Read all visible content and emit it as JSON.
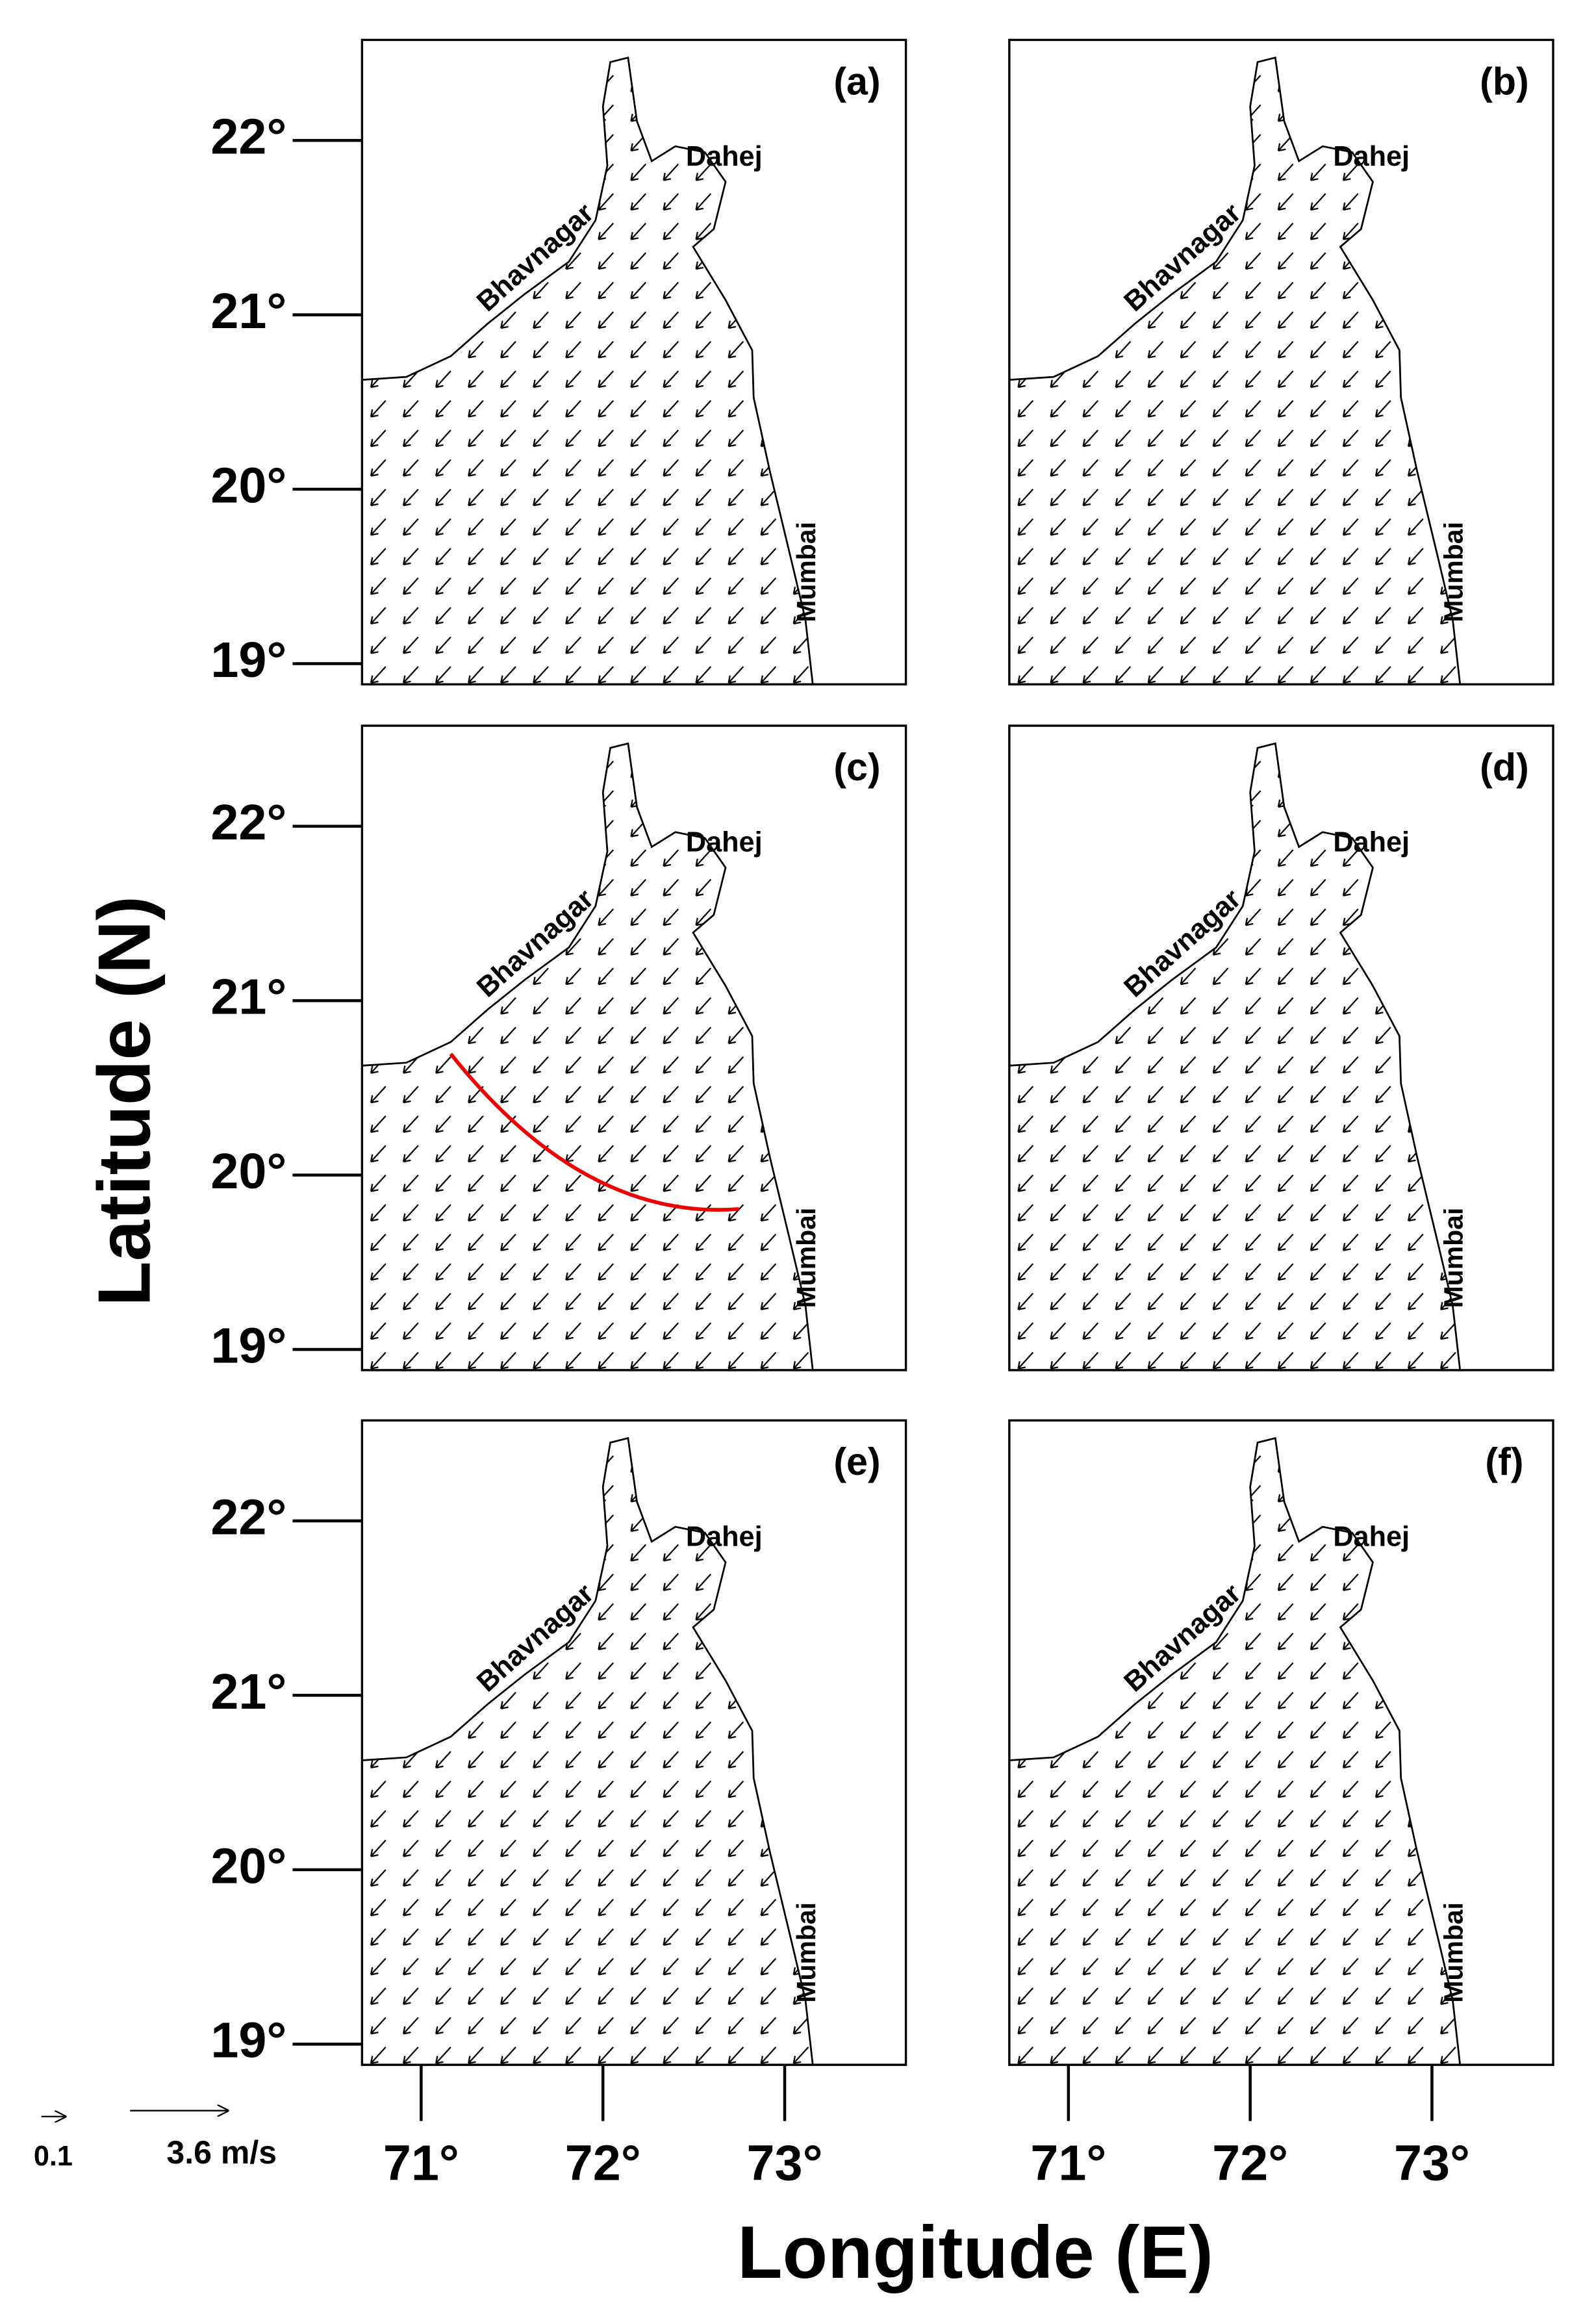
{
  "panels": [
    {
      "label": "(a)",
      "places": [
        "Dahej",
        "Bhavnagar",
        "Mumbai"
      ]
    },
    {
      "label": "(b)",
      "places": [
        "Dahej",
        "Bhavnagar",
        "Mumbai"
      ]
    },
    {
      "label": "(c)",
      "places": [
        "Dahej",
        "Bhavnagar",
        "Mumbai"
      ]
    },
    {
      "label": "(d)",
      "places": [
        "Dahej",
        "Bhavnagar",
        "Mumbai"
      ]
    },
    {
      "label": "(e)",
      "places": [
        "Dahej",
        "Bhavnagar",
        "Mumbai"
      ]
    },
    {
      "label": "(f)",
      "places": [
        "Dahej",
        "Bhavnagar",
        "Mumbai"
      ]
    }
  ],
  "lat_ticks": [
    {
      "value": 22,
      "label": "22°"
    },
    {
      "value": 21,
      "label": "21°"
    },
    {
      "value": 20,
      "label": "20°"
    },
    {
      "value": 19,
      "label": "19°"
    }
  ],
  "lon_ticks": [
    {
      "value": 71,
      "label": "71°"
    },
    {
      "value": 72,
      "label": "72°"
    },
    {
      "value": 73,
      "label": "73°"
    }
  ],
  "y_label": "Latitude (N)",
  "x_label": "Longitude (E)",
  "scale": {
    "small": "0.1",
    "large": "3.6 m/s"
  }
}
